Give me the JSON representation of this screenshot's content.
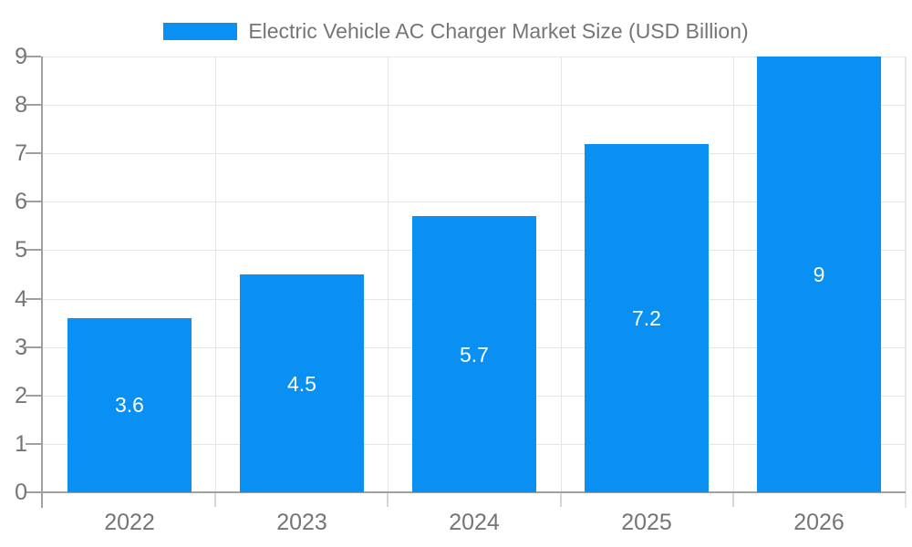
{
  "chart_data": {
    "type": "bar",
    "title": "Electric Vehicle AC Charger Market Size (USD Billion)",
    "categories": [
      "2022",
      "2023",
      "2024",
      "2025",
      "2026"
    ],
    "series": [
      {
        "name": "Electric Vehicle AC Charger Market Size (USD Billion)",
        "color": "#0a8ff2",
        "values": [
          3.6,
          4.5,
          5.7,
          7.2,
          9
        ]
      }
    ],
    "xlabel": "",
    "ylabel": "",
    "ylim": [
      0,
      9
    ],
    "yticks": [
      0,
      1,
      2,
      3,
      4,
      5,
      6,
      7,
      8,
      9
    ],
    "grid": true,
    "legend_position": "top-center",
    "value_label_position": "inside-center"
  },
  "style": {
    "background": "#ffffff",
    "bar_color": "#0a8ff2",
    "grid_color": "#e6e6e6",
    "axis_color": "#a0a0a0",
    "x_tick_color": "#d6d6d6",
    "text_color": "#757575",
    "value_label_color": "#ffffff"
  }
}
